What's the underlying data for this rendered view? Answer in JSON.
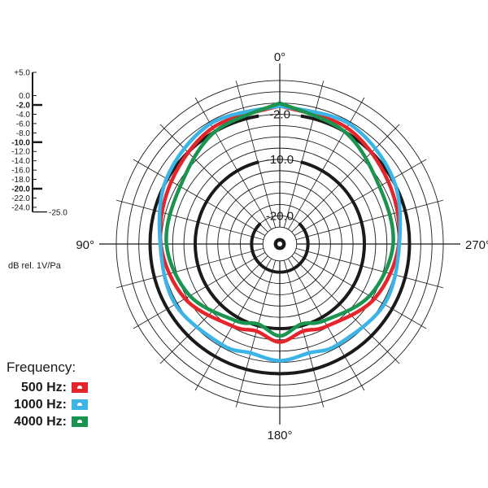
{
  "chart_data": {
    "type": "polar",
    "angle_labels": [
      {
        "angle": 0,
        "text": "0°"
      },
      {
        "angle": 90,
        "text": "90°"
      },
      {
        "angle": 180,
        "text": "180°"
      },
      {
        "angle": 270,
        "text": "270°"
      }
    ],
    "ring_labels": [
      {
        "db": -2,
        "text": "-2.0"
      },
      {
        "db": -10,
        "text": "-10.0"
      },
      {
        "db": -20,
        "text": "-20.0"
      }
    ],
    "r_range_db": [
      -25,
      5
    ],
    "scale": {
      "ticks": [
        {
          "value": 5,
          "text": "+5.0",
          "major": false
        },
        {
          "value": 0,
          "text": "0.0",
          "major": false
        },
        {
          "value": -2,
          "text": "-2.0",
          "major": true
        },
        {
          "value": -4,
          "text": "-4.0",
          "major": false
        },
        {
          "value": -6,
          "text": "-6.0",
          "major": false
        },
        {
          "value": -8,
          "text": "-8.0",
          "major": false
        },
        {
          "value": -10,
          "text": "-10.0",
          "major": true
        },
        {
          "value": -12,
          "text": "-12.0",
          "major": false
        },
        {
          "value": -14,
          "text": "-14.0",
          "major": false
        },
        {
          "value": -16,
          "text": "-16.0",
          "major": false
        },
        {
          "value": -18,
          "text": "-18.0",
          "major": false
        },
        {
          "value": -20,
          "text": "-20.0",
          "major": true
        },
        {
          "value": -22,
          "text": "-22.0",
          "major": false
        },
        {
          "value": -24,
          "text": "-24.0",
          "major": false
        }
      ],
      "bottom_label": "-25.0",
      "units": "dB rel. 1V/Pa"
    },
    "legend": {
      "title": "Frequency:",
      "placement": "bottom-left"
    },
    "series": [
      {
        "name": "500 Hz:",
        "color": "#e4262c",
        "angles": [
          0,
          30,
          60,
          90,
          120,
          150,
          165,
          180
        ],
        "values_db": [
          -0.5,
          -1.2,
          -2.8,
          -3.9,
          -5.6,
          -8.2,
          -9.0,
          -7.6
        ]
      },
      {
        "name": "1000 Hz:",
        "color": "#3cb4e6",
        "angles": [
          0,
          30,
          60,
          90,
          120,
          150,
          165,
          180
        ],
        "values_db": [
          -0.5,
          -0.4,
          -1.8,
          -3.8,
          -3.6,
          -4.4,
          -5.0,
          -4.3
        ]
      },
      {
        "name": "4000 Hz:",
        "color": "#1b9450",
        "angles": [
          0,
          30,
          60,
          90,
          120,
          150,
          165,
          180
        ],
        "values_db": [
          0.0,
          -2.0,
          -4.6,
          -4.9,
          -6.6,
          -9.3,
          -10.3,
          -8.7
        ]
      }
    ]
  }
}
